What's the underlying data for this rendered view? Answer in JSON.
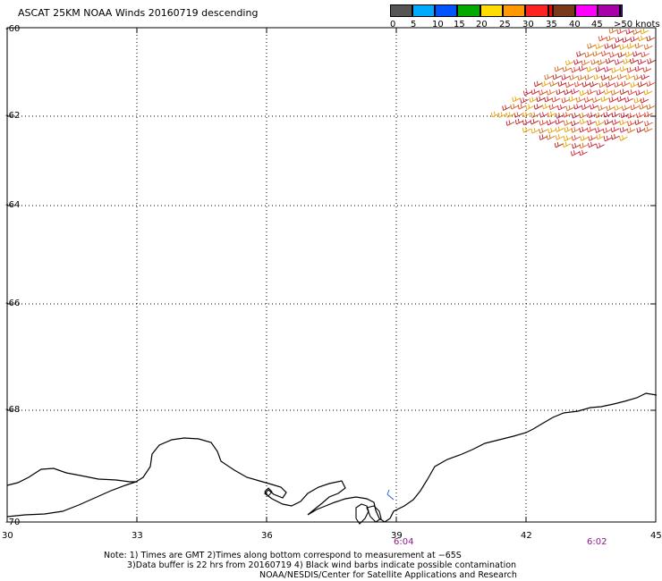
{
  "title": "ASCAT 25KM NOAA Winds 20160719 descending",
  "legend": {
    "colors": [
      "#555555",
      "#00aaff",
      "#0055ff",
      "#00aa00",
      "#ffdd00",
      "#ff9900",
      "#ff2222",
      "#ff0000",
      "#7a3a1a",
      "#ff00ff",
      "#aa00aa",
      "#5500aa"
    ],
    "labels": [
      "0",
      "5",
      "10",
      "15",
      "20",
      "25",
      "30",
      "35",
      "40",
      "45",
      ">50 knots"
    ]
  },
  "axes": {
    "latitudes": [
      "-60",
      "-62",
      "-64",
      "-66",
      "-68",
      "-70"
    ],
    "longitudes": [
      "30",
      "33",
      "36",
      "39",
      "42",
      "45"
    ]
  },
  "pass_times": [
    "6:04",
    "6:02"
  ],
  "notes": [
    "Note: 1) Times are GMT 2)Times along bottom correspond to measurement at −65S",
    "3)Data buffer is 22 hrs from 20160719 4) Black wind barbs indicate possible contamination",
    "NOAA/NESDIS/Center for Satellite Applications and Research"
  ],
  "swath": {
    "barb_colors": [
      "#cc1f3a",
      "#e0402a",
      "#d2691e",
      "#e8a000",
      "#b22222"
    ]
  }
}
